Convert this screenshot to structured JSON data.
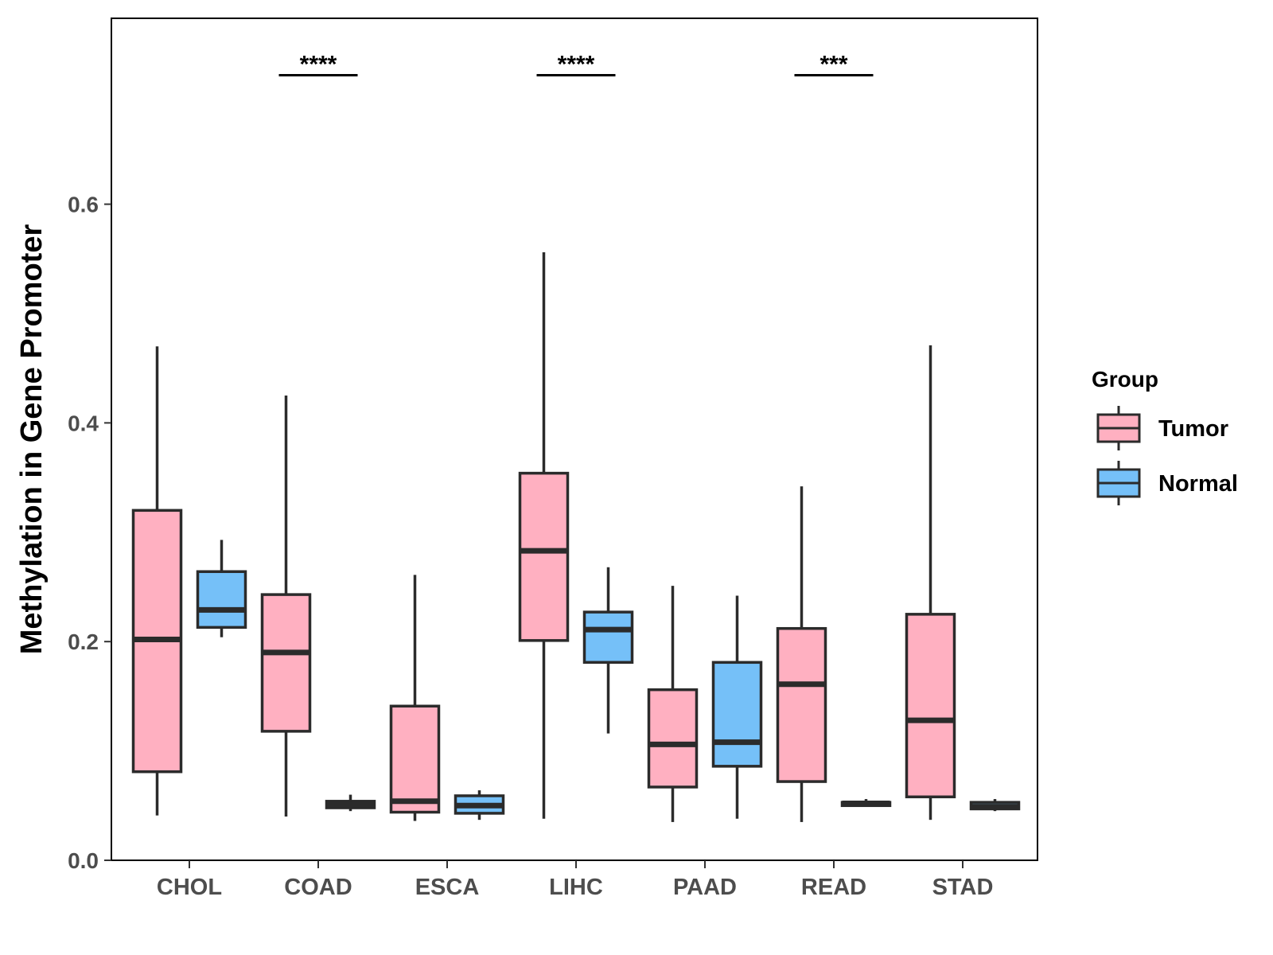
{
  "chart_data": {
    "type": "boxplot",
    "title": "",
    "xlabel": "",
    "ylabel": "Methylation in Gene Promoter",
    "ylim": [
      0,
      0.77
    ],
    "yticks": [
      0.0,
      0.2,
      0.4,
      0.6
    ],
    "ytick_labels": [
      "0.0",
      "0.2",
      "0.4",
      "0.6"
    ],
    "grid": false,
    "categories": [
      "CHOL",
      "COAD",
      "ESCA",
      "LIHC",
      "PAAD",
      "READ",
      "STAD"
    ],
    "series": [
      {
        "name": "Tumor",
        "color": "#FFB0C1",
        "boxes": [
          {
            "min": 0.041,
            "q1": 0.081,
            "median": 0.202,
            "q3": 0.32,
            "max": 0.47
          },
          {
            "min": 0.04,
            "q1": 0.118,
            "median": 0.19,
            "q3": 0.243,
            "max": 0.425
          },
          {
            "min": 0.036,
            "q1": 0.044,
            "median": 0.054,
            "q3": 0.141,
            "max": 0.261
          },
          {
            "min": 0.038,
            "q1": 0.201,
            "median": 0.283,
            "q3": 0.354,
            "max": 0.556
          },
          {
            "min": 0.035,
            "q1": 0.067,
            "median": 0.106,
            "q3": 0.156,
            "max": 0.251
          },
          {
            "min": 0.035,
            "q1": 0.072,
            "median": 0.161,
            "q3": 0.212,
            "max": 0.342
          },
          {
            "min": 0.037,
            "q1": 0.058,
            "median": 0.128,
            "q3": 0.225,
            "max": 0.471
          }
        ]
      },
      {
        "name": "Normal",
        "color": "#75C0F8",
        "boxes": [
          {
            "min": 0.204,
            "q1": 0.213,
            "median": 0.229,
            "q3": 0.264,
            "max": 0.293
          },
          {
            "min": 0.045,
            "q1": 0.048,
            "median": 0.051,
            "q3": 0.054,
            "max": 0.06
          },
          {
            "min": 0.037,
            "q1": 0.043,
            "median": 0.05,
            "q3": 0.059,
            "max": 0.064
          },
          {
            "min": 0.116,
            "q1": 0.181,
            "median": 0.211,
            "q3": 0.227,
            "max": 0.268
          },
          {
            "min": 0.038,
            "q1": 0.086,
            "median": 0.108,
            "q3": 0.181,
            "max": 0.242
          },
          {
            "min": 0.049,
            "q1": 0.05,
            "median": 0.052,
            "q3": 0.053,
            "max": 0.056
          },
          {
            "min": 0.045,
            "q1": 0.047,
            "median": 0.049,
            "q3": 0.053,
            "max": 0.056
          }
        ]
      }
    ],
    "significance": [
      {
        "category": "COAD",
        "label": "****",
        "y": 0.718
      },
      {
        "category": "LIHC",
        "label": "****",
        "y": 0.718
      },
      {
        "category": "READ",
        "label": "***",
        "y": 0.718
      }
    ],
    "legend": {
      "title": "Group",
      "position": "right",
      "entries": [
        "Tumor",
        "Normal"
      ]
    }
  }
}
